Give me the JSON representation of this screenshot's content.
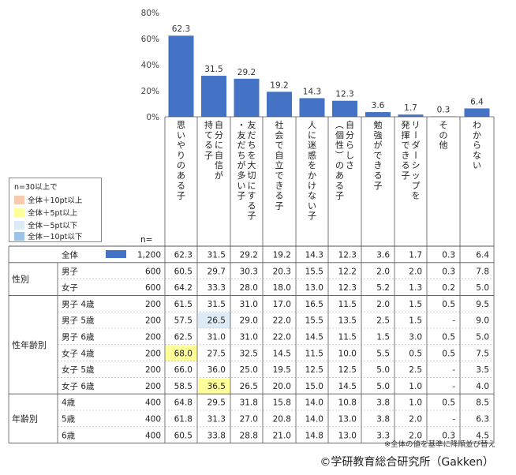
{
  "chart_data": {
    "type": "bar",
    "y_ticks": [
      "80%",
      "60%",
      "40%",
      "20%",
      "0%"
    ],
    "ylim": [
      0,
      80
    ],
    "categories": [
      "思いやりのある子",
      "自分に自信が持てる子",
      "友だちを大切にする子・友だちが多い子",
      "社会で自立できる子",
      "人に迷惑をかけない子",
      "自分らしさ（個性）のある子",
      "勉強ができる子",
      "リーダーシップを発揮できる子",
      "その他",
      "わからない"
    ],
    "values": [
      62.3,
      31.5,
      29.2,
      19.2,
      14.3,
      12.3,
      3.6,
      1.7,
      0.3,
      6.4
    ],
    "value_labels": [
      "62.3",
      "31.5",
      "29.2",
      "19.2",
      "14.3",
      "12.3",
      "3.6",
      "1.7",
      "0.3",
      "6.4"
    ],
    "bar_color": "#4472C4",
    "n_header": "n=",
    "legend": {
      "title": "n=30以上で",
      "items": [
        {
          "label": "全体＋10pt以上",
          "color": "#F8CBAD"
        },
        {
          "label": "全体＋5pt以上",
          "color": "#FFFF99"
        },
        {
          "label": "全体－5pt以下",
          "color": "#DDEBF7"
        },
        {
          "label": "全体－10pt以下",
          "color": "#9DC3E6"
        }
      ]
    },
    "table": {
      "rows": [
        {
          "group": "",
          "label": "全体",
          "n": "1,200",
          "values": [
            "62.3",
            "31.5",
            "29.2",
            "19.2",
            "14.3",
            "12.3",
            "3.6",
            "1.7",
            "0.3",
            "6.4"
          ],
          "highlight": []
        },
        {
          "group": "性別",
          "label": "男子",
          "n": "600",
          "values": [
            "60.5",
            "29.7",
            "30.3",
            "20.3",
            "15.5",
            "12.2",
            "2.0",
            "2.0",
            "0.3",
            "7.8"
          ],
          "highlight": []
        },
        {
          "group": "",
          "label": "女子",
          "n": "600",
          "values": [
            "64.2",
            "33.3",
            "28.0",
            "18.0",
            "13.0",
            "12.3",
            "5.2",
            "1.3",
            "0.2",
            "5.0"
          ],
          "highlight": []
        },
        {
          "group": "性年齢別",
          "label": "男子 4歳",
          "n": "200",
          "values": [
            "61.5",
            "31.5",
            "31.0",
            "17.0",
            "16.5",
            "11.5",
            "2.0",
            "1.5",
            "0.5",
            "9.5"
          ],
          "highlight": []
        },
        {
          "group": "",
          "label": "男子 5歳",
          "n": "200",
          "values": [
            "57.5",
            "26.5",
            "29.0",
            "22.0",
            "15.5",
            "13.5",
            "2.5",
            "1.5",
            "-",
            "9.0"
          ],
          "highlight": [
            {
              "col": 1,
              "color": "#DDEBF7"
            }
          ]
        },
        {
          "group": "",
          "label": "男子 6歳",
          "n": "200",
          "values": [
            "62.5",
            "31.0",
            "31.0",
            "22.0",
            "14.5",
            "11.5",
            "1.5",
            "3.0",
            "0.5",
            "5.0"
          ],
          "highlight": []
        },
        {
          "group": "",
          "label": "女子 4歳",
          "n": "200",
          "values": [
            "68.0",
            "27.5",
            "32.5",
            "14.5",
            "11.5",
            "10.0",
            "5.5",
            "0.5",
            "0.5",
            "7.5"
          ],
          "highlight": [
            {
              "col": 0,
              "color": "#FFFF99"
            }
          ]
        },
        {
          "group": "",
          "label": "女子 5歳",
          "n": "200",
          "values": [
            "66.0",
            "36.0",
            "25.0",
            "19.5",
            "12.5",
            "12.5",
            "5.0",
            "2.5",
            "-",
            "3.5"
          ],
          "highlight": []
        },
        {
          "group": "",
          "label": "女子 6歳",
          "n": "200",
          "values": [
            "58.5",
            "36.5",
            "26.5",
            "20.0",
            "15.0",
            "14.5",
            "5.0",
            "1.0",
            "-",
            "4.0"
          ],
          "highlight": [
            {
              "col": 1,
              "color": "#FFFF99"
            }
          ]
        },
        {
          "group": "年齢別",
          "label": "4歳",
          "n": "400",
          "values": [
            "64.8",
            "29.5",
            "31.8",
            "15.8",
            "14.0",
            "10.8",
            "3.8",
            "1.0",
            "0.5",
            "8.5"
          ],
          "highlight": []
        },
        {
          "group": "",
          "label": "5歳",
          "n": "400",
          "values": [
            "61.8",
            "31.3",
            "27.0",
            "20.8",
            "14.0",
            "13.0",
            "3.8",
            "2.0",
            "-",
            "6.3"
          ],
          "highlight": []
        },
        {
          "group": "",
          "label": "6歳",
          "n": "400",
          "values": [
            "60.5",
            "33.8",
            "28.8",
            "21.0",
            "14.8",
            "13.0",
            "3.3",
            "2.0",
            "0.3",
            "4.5"
          ],
          "highlight": []
        }
      ]
    },
    "note": "※全体の値を基準に降順並び替え",
    "credit": "©学研教育総合研究所（Gakken）"
  }
}
